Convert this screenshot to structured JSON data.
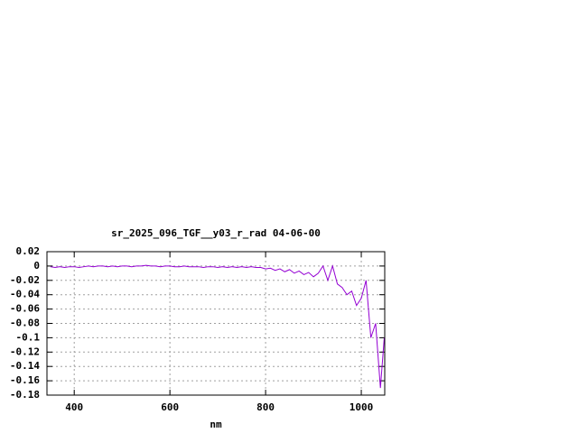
{
  "chart_data": {
    "type": "line",
    "title": "sr_2025_096_TGF__y03_r_rad 04-06-00",
    "xlabel": "nm",
    "x": [
      350,
      360,
      370,
      380,
      390,
      400,
      410,
      420,
      430,
      440,
      450,
      460,
      470,
      480,
      490,
      500,
      510,
      520,
      530,
      540,
      550,
      560,
      570,
      580,
      590,
      600,
      610,
      620,
      630,
      640,
      650,
      660,
      670,
      680,
      690,
      700,
      710,
      720,
      730,
      740,
      750,
      760,
      770,
      780,
      790,
      800,
      810,
      820,
      830,
      840,
      850,
      860,
      870,
      880,
      890,
      900,
      910,
      920,
      930,
      940,
      950,
      960,
      970,
      980,
      990,
      1000,
      1010,
      1020,
      1030,
      1040,
      1048
    ],
    "series": [
      {
        "name": null,
        "color": "#9400d3",
        "values": [
          -0.001,
          -0.002,
          -0.001,
          -0.002,
          -0.001,
          -0.001,
          -0.002,
          -0.001,
          0,
          -0.001,
          0,
          0,
          -0.001,
          0,
          -0.001,
          0,
          0,
          -0.001,
          0,
          0,
          0.001,
          0,
          0,
          -0.001,
          0,
          0,
          -0.001,
          -0.001,
          0,
          -0.001,
          -0.001,
          -0.001,
          -0.002,
          -0.001,
          -0.001,
          -0.002,
          -0.001,
          -0.002,
          -0.001,
          -0.002,
          -0.001,
          -0.002,
          -0.001,
          -0.002,
          -0.002,
          -0.004,
          -0.003,
          -0.006,
          -0.004,
          -0.008,
          -0.005,
          -0.01,
          -0.007,
          -0.012,
          -0.009,
          -0.015,
          -0.01,
          0,
          -0.02,
          0,
          -0.025,
          -0.03,
          -0.04,
          -0.035,
          -0.055,
          -0.045,
          -0.02,
          -0.1,
          -0.08,
          -0.17,
          -0.1
        ]
      }
    ],
    "xlim": [
      343,
      1049
    ],
    "xticks": [
      400,
      600,
      800,
      1000
    ],
    "ylim": [
      -0.18,
      0.02
    ],
    "yticks": [
      0.02,
      0,
      -0.02,
      -0.04,
      -0.06,
      -0.08,
      -0.1,
      -0.12,
      -0.14,
      -0.16,
      -0.18
    ],
    "grid": true
  }
}
